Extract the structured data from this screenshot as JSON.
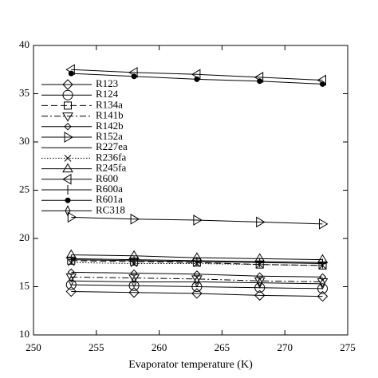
{
  "chart_data": {
    "type": "line",
    "x_label": "Evaporator temperature (K)",
    "x": [
      253,
      258,
      263,
      268,
      273
    ],
    "xlim": [
      250,
      275
    ],
    "xticks": [
      250,
      255,
      260,
      265,
      270,
      275
    ],
    "ylim": [
      10,
      40
    ],
    "yticks": [
      10,
      15,
      20,
      25,
      30,
      35,
      40
    ],
    "legend": "upper-left",
    "series": [
      {
        "name": "R123",
        "color": "#000000",
        "marker": "diamond",
        "dash": "solid",
        "values": [
          14.5,
          14.4,
          14.3,
          14.1,
          14.0
        ]
      },
      {
        "name": "R124",
        "color": "#000000",
        "marker": "circle",
        "dash": "solid",
        "values": [
          15.2,
          15.1,
          15.0,
          14.9,
          14.8
        ]
      },
      {
        "name": "R134a",
        "color": "#000000",
        "marker": "square",
        "dash": "dashed",
        "values": [
          17.7,
          17.6,
          17.5,
          17.3,
          17.2
        ]
      },
      {
        "name": "R141b",
        "color": "#000000",
        "marker": "triangle-down",
        "dash": "dashdot",
        "values": [
          16.0,
          15.9,
          15.8,
          15.6,
          15.5
        ]
      },
      {
        "name": "R142b",
        "color": "#000000",
        "marker": "small-diamond",
        "dash": "solid",
        "values": [
          16.5,
          16.4,
          16.3,
          16.1,
          16.0
        ]
      },
      {
        "name": "R152a",
        "color": "#000000",
        "marker": "triangle-right",
        "dash": "solid",
        "values": [
          22.2,
          22.0,
          21.9,
          21.7,
          21.5
        ]
      },
      {
        "name": "R227ea",
        "color": "#000000",
        "marker": "none",
        "dash": "solid",
        "values": [
          17.9,
          17.8,
          17.7,
          17.6,
          17.5
        ]
      },
      {
        "name": "R236fa",
        "color": "#000000",
        "marker": "x",
        "dash": "dotted",
        "values": [
          17.5,
          17.4,
          17.4,
          17.3,
          17.2
        ]
      },
      {
        "name": "R245fa",
        "color": "#000000",
        "marker": "triangle-up",
        "dash": "solid",
        "values": [
          18.3,
          18.2,
          18.0,
          17.9,
          17.8
        ]
      },
      {
        "name": "R600",
        "color": "#000000",
        "marker": "triangle-left",
        "dash": "solid",
        "values": [
          37.5,
          37.2,
          37.0,
          36.7,
          36.4
        ]
      },
      {
        "name": "R600a",
        "color": "#000000",
        "marker": "plus",
        "dash": "solid",
        "values": [
          17.8,
          17.7,
          17.6,
          17.5,
          17.4
        ]
      },
      {
        "name": "R601a",
        "color": "#000000",
        "marker": "filled-circle",
        "dash": "solid",
        "values": [
          37.1,
          36.8,
          36.5,
          36.3,
          36.0
        ]
      },
      {
        "name": "RC318",
        "color": "#000000",
        "marker": "thin-diamond",
        "dash": "solid",
        "values": [
          15.6,
          15.5,
          15.5,
          15.4,
          15.3
        ]
      }
    ]
  }
}
